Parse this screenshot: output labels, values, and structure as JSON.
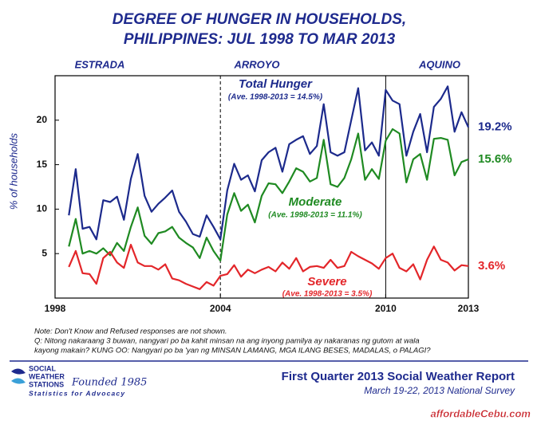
{
  "chart_data": {
    "type": "line",
    "title": [
      "DEGREE OF HUNGER IN HOUSEHOLDS,",
      "PHILIPPINES: JUL 1998 TO MAR 2013"
    ],
    "eras": [
      "ESTRADA",
      "ARROYO",
      "AQUINO"
    ],
    "y_label": "% of households",
    "xlim": [
      1998,
      2013
    ],
    "xticks": [
      1998,
      2004,
      2010,
      2013
    ],
    "ylim": [
      0,
      25
    ],
    "yticks": [
      5,
      10,
      15,
      20
    ],
    "grid": false,
    "dividers": [
      {
        "value": 2004,
        "dashed": true
      },
      {
        "value": 2010,
        "dashed": false
      }
    ],
    "x": [
      1998.5,
      1998.75,
      1999,
      1999.25,
      1999.5,
      1999.75,
      2000,
      2000.25,
      2000.5,
      2000.75,
      2001,
      2001.25,
      2001.5,
      2001.75,
      2002,
      2002.25,
      2002.5,
      2002.75,
      2003,
      2003.25,
      2003.5,
      2003.75,
      2004,
      2004.25,
      2004.5,
      2004.75,
      2005,
      2005.25,
      2005.5,
      2005.75,
      2006,
      2006.25,
      2006.5,
      2006.75,
      2007,
      2007.25,
      2007.5,
      2007.75,
      2008,
      2008.25,
      2008.5,
      2008.75,
      2009,
      2009.25,
      2009.5,
      2009.75,
      2010,
      2010.25,
      2010.5,
      2010.75,
      2011,
      2011.25,
      2011.5,
      2011.75,
      2012,
      2012.25,
      2012.5,
      2012.75,
      2013
    ],
    "series": [
      {
        "name": "Total Hunger",
        "note": "(Ave. 1998-2013 = 14.5%)",
        "end_label": "19.2%",
        "color": "#1c2a8c",
        "values": [
          9.3,
          14.5,
          7.8,
          8.0,
          6.6,
          11.0,
          10.8,
          11.4,
          8.8,
          13.4,
          16.2,
          11.5,
          9.7,
          10.6,
          11.3,
          12.1,
          9.7,
          8.6,
          7.2,
          6.9,
          9.3,
          8.0,
          6.6,
          12.1,
          15.1,
          13.3,
          13.8,
          12.0,
          15.5,
          16.4,
          16.9,
          14.2,
          17.3,
          17.8,
          18.2,
          16.2,
          17.1,
          21.8,
          16.4,
          16.0,
          16.4,
          20.0,
          23.6,
          16.6,
          17.5,
          16.0,
          23.4,
          22.2,
          21.8,
          16.0,
          18.7,
          20.7,
          16.4,
          21.5,
          22.4,
          23.8,
          18.7,
          20.9,
          19.2
        ]
      },
      {
        "name": "Moderate",
        "note": "(Ave. 1998-2013 = 11.1%)",
        "end_label": "15.6%",
        "color": "#1f8a22",
        "values": [
          5.8,
          8.9,
          5.0,
          5.3,
          5.0,
          5.6,
          4.8,
          6.2,
          5.3,
          8.0,
          10.2,
          7.0,
          6.1,
          7.3,
          7.5,
          8.0,
          6.8,
          6.2,
          5.7,
          4.5,
          6.8,
          5.3,
          4.2,
          9.4,
          11.8,
          9.8,
          10.5,
          8.5,
          11.5,
          12.9,
          12.8,
          11.8,
          13.1,
          14.6,
          14.2,
          13.1,
          13.5,
          17.8,
          12.8,
          12.5,
          13.5,
          15.6,
          18.5,
          13.3,
          14.5,
          13.4,
          17.7,
          19.0,
          18.5,
          13.0,
          15.6,
          16.2,
          13.3,
          17.9,
          18.0,
          17.8,
          13.8,
          15.3,
          15.6
        ]
      },
      {
        "name": "Severe",
        "note": "(Ave. 1998-2013 = 3.5%)",
        "end_label": "3.6%",
        "color": "#e3262a",
        "values": [
          3.5,
          5.3,
          2.8,
          2.7,
          1.6,
          4.5,
          5.2,
          4.0,
          3.4,
          6.0,
          4.0,
          3.6,
          3.6,
          3.2,
          3.8,
          2.2,
          2.0,
          1.6,
          1.3,
          1.0,
          1.8,
          1.4,
          2.5,
          2.7,
          3.7,
          2.4,
          3.2,
          2.8,
          3.2,
          3.5,
          3.0,
          4.0,
          3.3,
          4.5,
          3.0,
          3.5,
          3.6,
          3.4,
          4.3,
          3.4,
          3.6,
          5.2,
          4.7,
          4.3,
          3.9,
          3.3,
          4.5,
          5.0,
          3.4,
          3.0,
          3.8,
          2.1,
          4.3,
          5.8,
          4.3,
          4.0,
          3.1,
          3.7,
          3.6
        ]
      }
    ],
    "notes": [
      "Note: Don't Know and Refused responses are not shown.",
      "Q: Nitong nakaraang 3 buwan, nangyari po ba kahit minsan na ang inyong pamilya ay nakaranas ng gutom at wala",
      "kayong makain? KUNG OO: Nangyari po ba 'yan ng MINSAN LAMANG, MGA ILANG BESES, MADALAS, o PALAGI?"
    ],
    "logo": {
      "lines": [
        "SOCIAL",
        "WEATHER",
        "STATIONS"
      ],
      "founded": "Founded 1985",
      "tagline": "Statistics for Advocacy"
    },
    "report_title": "First Quarter 2013 Social Weather Report",
    "survey": "March 19-22, 2013 National Survey",
    "watermark": "affordableCebu.com"
  }
}
